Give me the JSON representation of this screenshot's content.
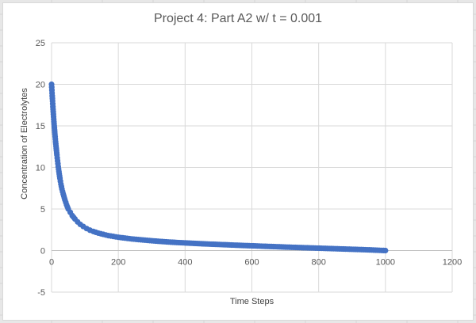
{
  "chart_data": {
    "type": "scatter",
    "title": "Project 4: Part A2 w/ t = 0.001",
    "xlabel": "Time Steps",
    "ylabel": "Concentration of Electrolytes",
    "xlim": [
      0,
      1200
    ],
    "ylim": [
      -5,
      25
    ],
    "xticks": [
      "0",
      "200",
      "400",
      "600",
      "800",
      "1000",
      "1200"
    ],
    "yticks": [
      "-5",
      "0",
      "5",
      "10",
      "15",
      "20",
      "25"
    ],
    "grid": true,
    "legend": "none",
    "marker_color": "#4472c4",
    "series": [
      {
        "x": [
          0,
          1,
          2,
          3,
          4,
          5,
          6,
          7,
          8,
          9,
          10,
          12,
          14,
          16,
          18,
          20,
          22,
          25,
          28,
          31,
          35,
          40,
          45,
          50,
          56,
          62,
          70,
          78,
          86,
          95,
          105,
          115,
          125,
          140,
          155,
          170,
          185,
          200,
          220,
          240,
          260,
          280,
          300,
          325,
          350,
          375,
          400,
          430,
          460,
          490,
          520,
          550,
          580,
          610,
          640,
          670,
          700,
          730,
          760,
          790,
          820,
          850,
          880,
          910,
          940,
          970,
          1000
        ],
        "y": [
          20.0,
          19.3,
          18.6,
          18.0,
          17.3,
          16.7,
          16.1,
          15.5,
          15.0,
          14.5,
          14.0,
          13.1,
          12.3,
          11.5,
          10.8,
          10.1,
          9.5,
          8.7,
          8.0,
          7.4,
          6.8,
          6.1,
          5.5,
          5.0,
          4.6,
          4.2,
          3.8,
          3.45,
          3.15,
          2.9,
          2.65,
          2.45,
          2.3,
          2.1,
          1.95,
          1.8,
          1.7,
          1.6,
          1.5,
          1.4,
          1.32,
          1.25,
          1.18,
          1.1,
          1.03,
          0.97,
          0.92,
          0.86,
          0.8,
          0.75,
          0.7,
          0.65,
          0.6,
          0.56,
          0.51,
          0.47,
          0.42,
          0.38,
          0.34,
          0.3,
          0.26,
          0.22,
          0.18,
          0.14,
          0.1,
          0.05,
          0.0
        ]
      }
    ]
  }
}
